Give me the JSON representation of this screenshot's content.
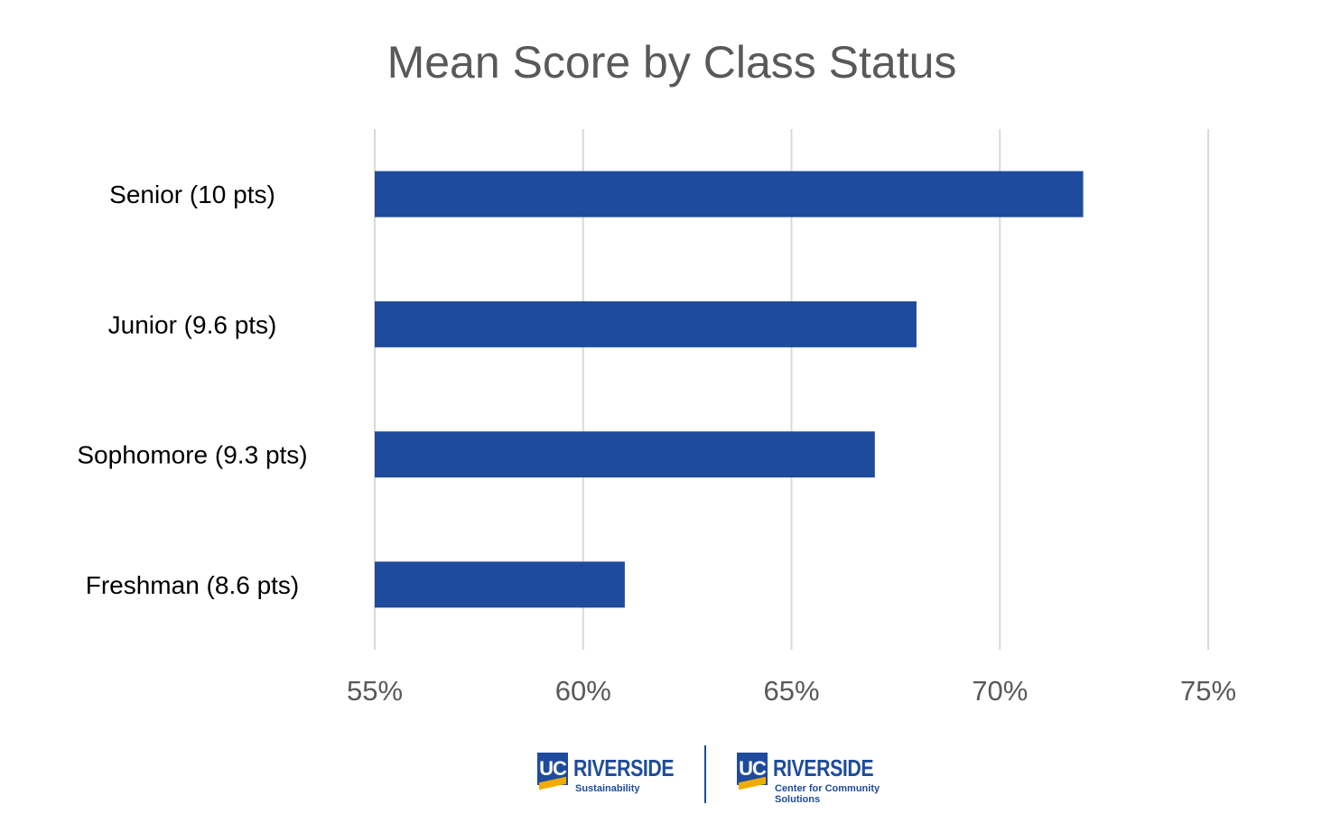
{
  "chart_data": {
    "type": "bar",
    "orientation": "horizontal",
    "title": "Mean Score by Class Status",
    "categories": [
      "Senior (10 pts)",
      "Junior (9.6 pts)",
      "Sophomore (9.3 pts)",
      "Freshman (8.6 pts)"
    ],
    "values": [
      72,
      68,
      67,
      61
    ],
    "xlim": [
      55,
      75
    ],
    "x_ticks": [
      "55%",
      "60%",
      "65%",
      "70%",
      "75%"
    ],
    "grid": true,
    "bar_color": "#1e4b9b",
    "grid_color": "#d9d9d9"
  },
  "logos": {
    "left": {
      "mark": "UC",
      "name": "RIVERSIDE",
      "subtitle": "Sustainability"
    },
    "right": {
      "mark": "UC",
      "name": "RIVERSIDE",
      "subtitle": "Center for Community Solutions"
    }
  }
}
